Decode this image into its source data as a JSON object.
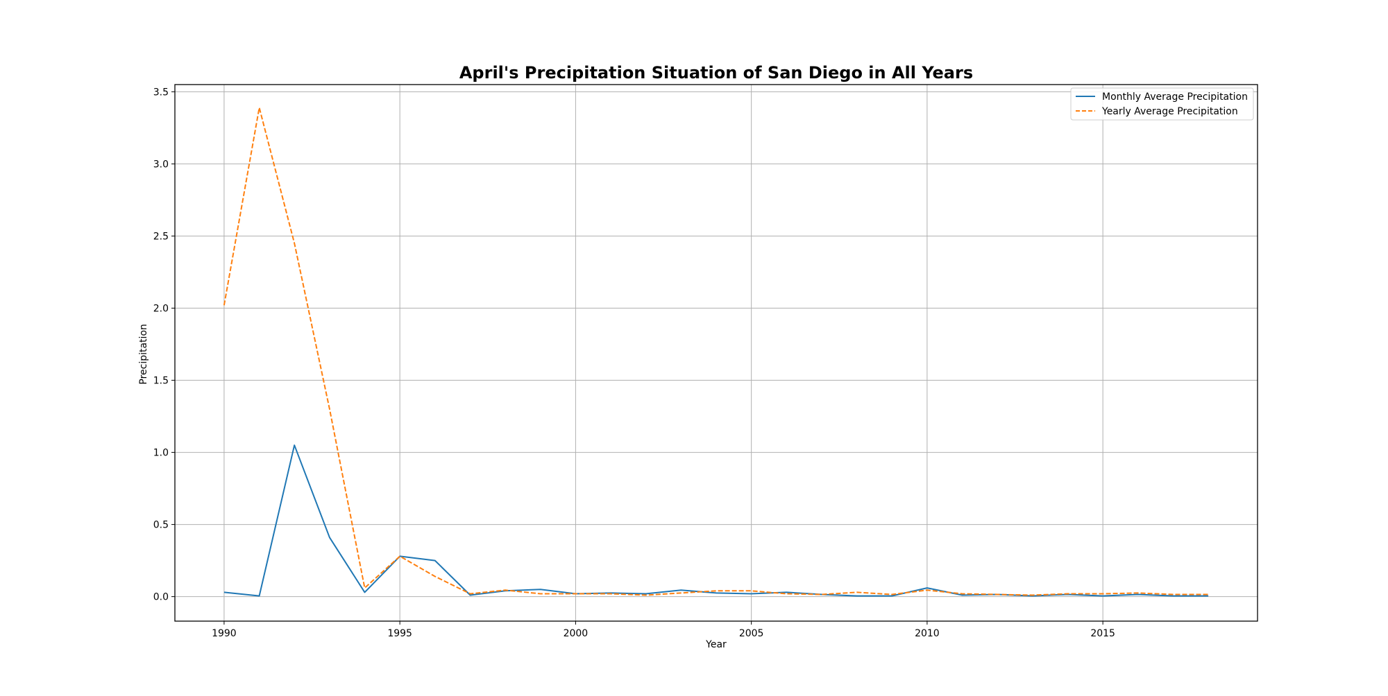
{
  "chart_data": {
    "type": "line",
    "title": "April's Precipitation Situation of San Diego in All Years",
    "xlabel": "Year",
    "ylabel": "Precipitation",
    "xlim": [
      1988.6,
      2019.4
    ],
    "ylim": [
      -0.17,
      3.55
    ],
    "x_ticks": [
      1990,
      1995,
      2000,
      2005,
      2010,
      2015
    ],
    "y_ticks": [
      0.0,
      0.5,
      1.0,
      1.5,
      2.0,
      2.5,
      3.0,
      3.5
    ],
    "y_tick_labels": [
      "0.0",
      "0.5",
      "1.0",
      "1.5",
      "2.0",
      "2.5",
      "3.0",
      "3.5"
    ],
    "grid": true,
    "legend_position": "top-right",
    "x": [
      1990,
      1991,
      1992,
      1993,
      1994,
      1995,
      1996,
      1997,
      1998,
      1999,
      2000,
      2001,
      2002,
      2003,
      2004,
      2005,
      2006,
      2007,
      2008,
      2009,
      2010,
      2011,
      2012,
      2013,
      2014,
      2015,
      2016,
      2017,
      2018
    ],
    "series": [
      {
        "name": "Monthly Average Precipitation",
        "color": "#1f77b4",
        "style": "solid",
        "values": [
          0.03,
          0.005,
          1.05,
          0.41,
          0.03,
          0.28,
          0.25,
          0.01,
          0.04,
          0.05,
          0.02,
          0.025,
          0.02,
          0.045,
          0.025,
          0.02,
          0.03,
          0.015,
          0.005,
          0.005,
          0.06,
          0.01,
          0.015,
          0.005,
          0.015,
          0.005,
          0.015,
          0.005,
          0.005
        ]
      },
      {
        "name": "Yearly Average Precipitation",
        "color": "#ff7f0e",
        "style": "dashed",
        "values": [
          2.02,
          3.39,
          2.45,
          1.3,
          0.06,
          0.28,
          0.14,
          0.02,
          0.045,
          0.02,
          0.02,
          0.02,
          0.01,
          0.025,
          0.04,
          0.04,
          0.02,
          0.015,
          0.03,
          0.015,
          0.045,
          0.02,
          0.015,
          0.01,
          0.02,
          0.02,
          0.025,
          0.015,
          0.015
        ]
      }
    ]
  }
}
